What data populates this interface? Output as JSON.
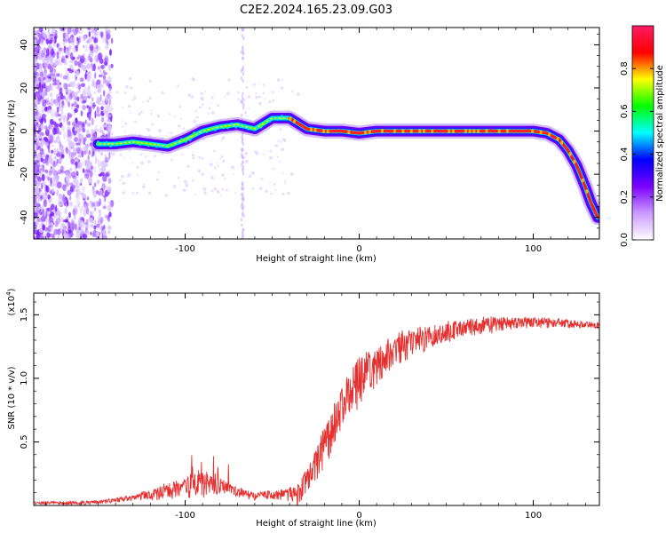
{
  "title": "C2E2.2024.165.23.09.G03",
  "chart_data": [
    {
      "type": "heatmap",
      "xlabel": "Height of straight line (km)",
      "ylabel": "Frequency (Hz)",
      "xlim": [
        -187,
        138
      ],
      "ylim": [
        -50,
        48
      ],
      "xticks": [
        -100,
        0,
        100
      ],
      "xtick_labels": [
        "-100",
        "0",
        "100"
      ],
      "yticks": [
        -40,
        -20,
        0,
        20,
        40
      ],
      "ytick_labels": [
        "-40",
        "-20",
        "0",
        "20",
        "40"
      ],
      "grid": false,
      "ridge": [
        [
          -150,
          -6
        ],
        [
          -140,
          -6
        ],
        [
          -130,
          -5
        ],
        [
          -120,
          -6
        ],
        [
          -110,
          -7
        ],
        [
          -100,
          -4
        ],
        [
          -90,
          0
        ],
        [
          -80,
          2
        ],
        [
          -70,
          3
        ],
        [
          -60,
          1
        ],
        [
          -50,
          6
        ],
        [
          -40,
          6
        ],
        [
          -30,
          1
        ],
        [
          -20,
          0
        ],
        [
          -10,
          0
        ],
        [
          0,
          -1
        ],
        [
          10,
          0
        ],
        [
          20,
          0
        ],
        [
          40,
          0
        ],
        [
          60,
          0
        ],
        [
          80,
          0
        ],
        [
          100,
          0
        ],
        [
          108,
          -1
        ],
        [
          115,
          -4
        ],
        [
          120,
          -9
        ],
        [
          125,
          -16
        ],
        [
          130,
          -26
        ],
        [
          133,
          -33
        ],
        [
          137,
          -40
        ]
      ],
      "colorbar": {
        "label": "Normalized spectral amplitude",
        "range": [
          0,
          1
        ],
        "ticks": [
          0,
          0.2,
          0.4,
          0.6,
          0.8
        ],
        "tick_labels": [
          "0.0",
          "0.2",
          "0.4",
          "0.6",
          "0.8"
        ],
        "colors": [
          "#ffffff",
          "#cc99ff",
          "#7a00ff",
          "#0000ff",
          "#00ffff",
          "#00ff00",
          "#ffff00",
          "#ff0000",
          "#ff1a66"
        ]
      }
    },
    {
      "type": "line",
      "xlabel": "Height of straight line (km)",
      "ylabel": "SNR (10 * v/v)",
      "yscale_label": "(x10",
      "yscale_exp": "4",
      "yscale_close": ")",
      "xlim": [
        -187,
        138
      ],
      "ylim": [
        0,
        1.67
      ],
      "xticks": [
        -100,
        0,
        100
      ],
      "xtick_labels": [
        "-100",
        "0",
        "100"
      ],
      "yticks": [
        0.5,
        1.0,
        1.5
      ],
      "ytick_labels": [
        "0.5",
        "1.0",
        "1.5"
      ],
      "grid": false,
      "color": "#e53030",
      "envelope": [
        [
          -187,
          0.03
        ],
        [
          -170,
          0.03
        ],
        [
          -150,
          0.04
        ],
        [
          -130,
          0.08
        ],
        [
          -120,
          0.12
        ],
        [
          -110,
          0.17
        ],
        [
          -100,
          0.22
        ],
        [
          -90,
          0.25
        ],
        [
          -80,
          0.22
        ],
        [
          -70,
          0.14
        ],
        [
          -60,
          0.1
        ],
        [
          -50,
          0.12
        ],
        [
          -40,
          0.14
        ],
        [
          -35,
          0.16
        ],
        [
          -30,
          0.3
        ],
        [
          -25,
          0.45
        ],
        [
          -20,
          0.6
        ],
        [
          -15,
          0.75
        ],
        [
          -10,
          0.95
        ],
        [
          -5,
          1.08
        ],
        [
          0,
          1.15
        ],
        [
          5,
          1.22
        ],
        [
          10,
          1.25
        ],
        [
          20,
          1.32
        ],
        [
          30,
          1.38
        ],
        [
          40,
          1.41
        ],
        [
          50,
          1.44
        ],
        [
          60,
          1.46
        ],
        [
          80,
          1.48
        ],
        [
          100,
          1.48
        ],
        [
          120,
          1.46
        ],
        [
          138,
          1.44
        ]
      ],
      "noise": [
        [
          -187,
          0.02
        ],
        [
          -130,
          0.04
        ],
        [
          -110,
          0.12
        ],
        [
          -95,
          0.2
        ],
        [
          -85,
          0.18
        ],
        [
          -75,
          0.08
        ],
        [
          -55,
          0.06
        ],
        [
          -40,
          0.1
        ],
        [
          -30,
          0.22
        ],
        [
          -15,
          0.32
        ],
        [
          0,
          0.35
        ],
        [
          15,
          0.3
        ],
        [
          30,
          0.22
        ],
        [
          60,
          0.14
        ],
        [
          100,
          0.08
        ],
        [
          138,
          0.05
        ]
      ]
    }
  ]
}
